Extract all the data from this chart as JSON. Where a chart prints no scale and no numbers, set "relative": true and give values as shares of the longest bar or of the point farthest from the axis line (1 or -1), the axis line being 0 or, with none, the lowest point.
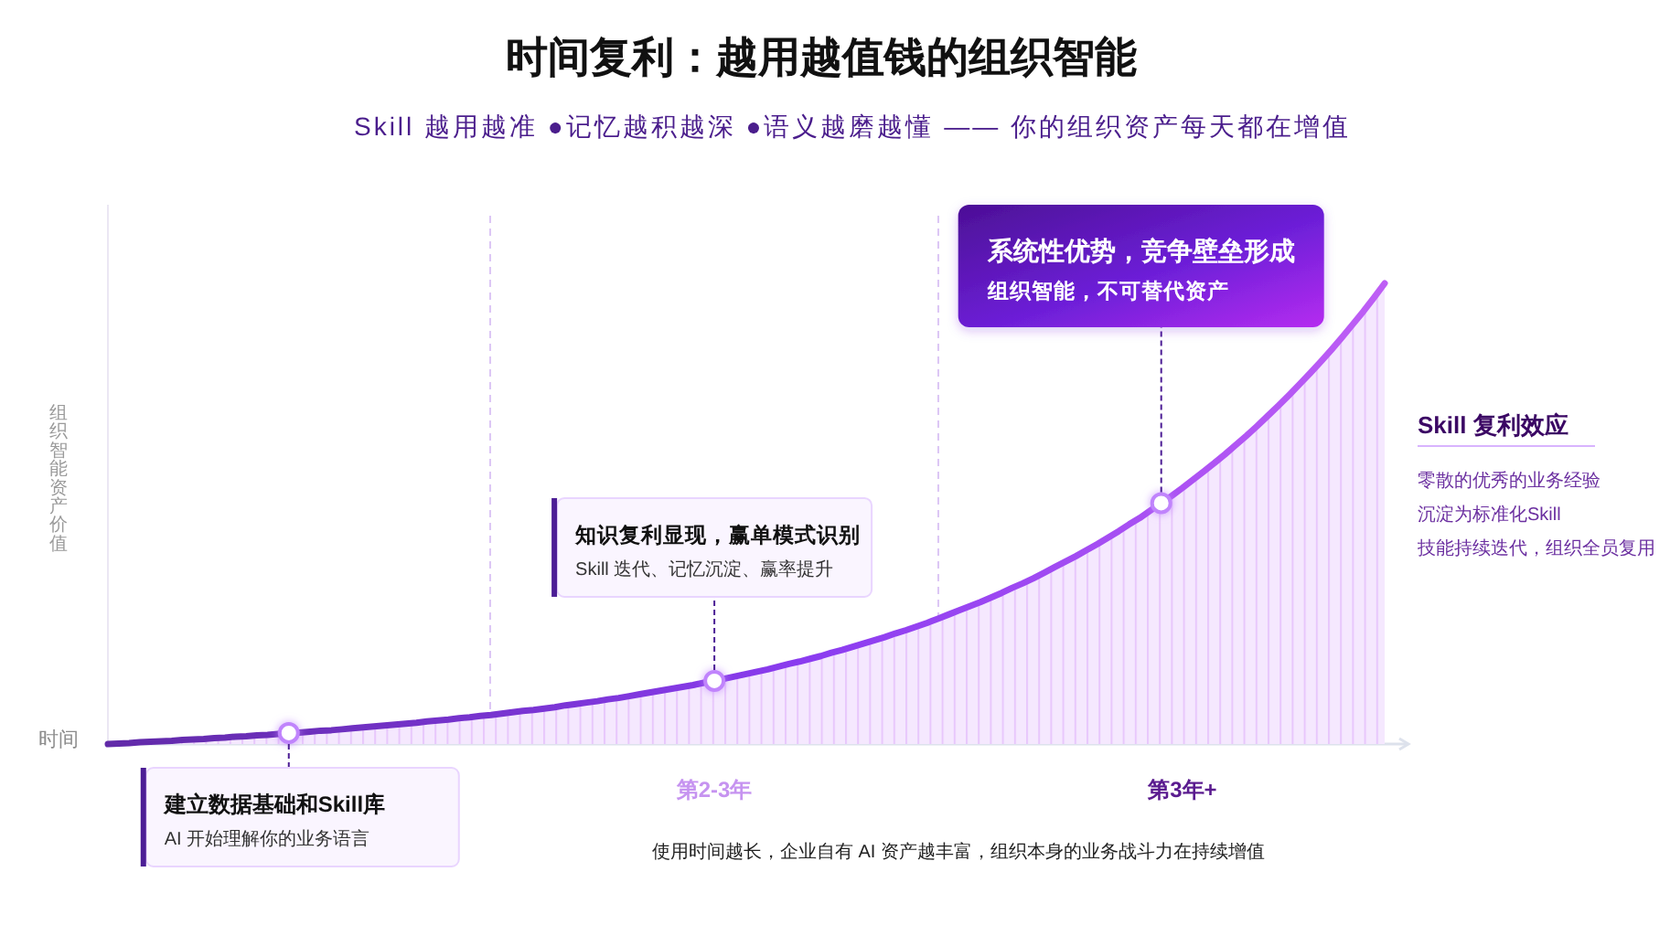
{
  "chart_data": {
    "type": "area",
    "title": "时间复利：越用越值钱的组织智能",
    "subtitle": "Skill 越用越准 ●记忆越积越深 ●语义越磨越懂 —— 你的组织资产每天都在增值",
    "xlabel": "时间",
    "ylabel": "组织智能资产价值",
    "relative": true,
    "tick_labels": "x",
    "categories": [
      null,
      null,
      null,
      null,
      null,
      null,
      null,
      null,
      null,
      null,
      null,
      null,
      null,
      null,
      null,
      null,
      null,
      null,
      null,
      null,
      null,
      null,
      null,
      null,
      null,
      null,
      null,
      null,
      null,
      null,
      null,
      null,
      null,
      null,
      null,
      null,
      null,
      null,
      null,
      null,
      null,
      null,
      null,
      null,
      null,
      null,
      null,
      null,
      null,
      null,
      null,
      null,
      null,
      null,
      null,
      null,
      null,
      "第2-3年",
      null,
      null,
      null,
      null,
      null,
      null,
      null,
      null,
      null,
      null,
      null,
      null,
      null,
      null,
      null,
      null,
      null,
      null,
      null,
      null,
      null,
      null,
      null,
      null,
      null,
      null,
      null,
      null,
      null,
      null,
      null,
      null,
      null,
      null,
      null,
      null,
      null,
      null,
      null,
      null,
      null,
      null,
      null,
      "第3年+",
      null,
      null,
      null,
      null,
      null,
      null,
      null,
      null,
      null,
      null,
      null,
      null,
      null,
      null,
      null,
      null,
      null,
      null,
      null
    ],
    "series": [
      {
        "color": "#8b3cf0",
        "values": [
          0,
          0.001,
          0.002,
          0.004,
          0.005,
          0.006,
          0.007,
          0.009,
          0.01,
          0.011,
          0.013,
          0.014,
          0.016,
          0.017,
          0.019,
          0.02,
          0.022,
          0.024,
          0.025,
          0.027,
          0.029,
          0.03,
          0.032,
          0.034,
          0.036,
          0.038,
          0.04,
          0.042,
          0.044,
          0.046,
          0.049,
          0.051,
          0.053,
          0.056,
          0.058,
          0.061,
          0.063,
          0.066,
          0.069,
          0.072,
          0.074,
          0.077,
          0.08,
          0.084,
          0.087,
          0.09,
          0.093,
          0.097,
          0.1,
          0.104,
          0.108,
          0.112,
          0.116,
          0.12,
          0.124,
          0.128,
          0.133,
          0.137,
          0.142,
          0.147,
          0.152,
          0.157,
          0.162,
          0.168,
          0.174,
          0.179,
          0.185,
          0.191,
          0.198,
          0.204,
          0.211,
          0.218,
          0.225,
          0.232,
          0.24,
          0.247,
          0.255,
          0.263,
          0.272,
          0.281,
          0.29,
          0.299,
          0.308,
          0.318,
          0.328,
          0.339,
          0.349,
          0.36,
          0.372,
          0.384,
          0.396,
          0.408,
          0.421,
          0.434,
          0.448,
          0.462,
          0.477,
          0.491,
          0.507,
          0.523,
          0.539,
          0.556,
          0.574,
          0.592,
          0.61,
          0.629,
          0.649,
          0.669,
          0.69,
          0.712,
          0.734,
          0.757,
          0.781,
          0.805,
          0.83,
          0.856,
          0.883,
          0.911,
          0.939,
          0.969,
          1
        ]
      },
      {
        "type": "scatter",
        "color": "#c084fc",
        "values": [
          null,
          null,
          null,
          null,
          null,
          null,
          null,
          null,
          null,
          null,
          null,
          null,
          null,
          null,
          null,
          null,
          null,
          0.024,
          null,
          null,
          null,
          null,
          null,
          null,
          null,
          null,
          null,
          null,
          null,
          null,
          null,
          null,
          null,
          null,
          null,
          null,
          null,
          null,
          null,
          null,
          null,
          null,
          null,
          null,
          null,
          null,
          null,
          null,
          null,
          null,
          null,
          null,
          null,
          null,
          null,
          null,
          null,
          0.137,
          null,
          null,
          null,
          null,
          null,
          null,
          null,
          null,
          null,
          null,
          null,
          null,
          null,
          null,
          null,
          null,
          null,
          null,
          null,
          null,
          null,
          null,
          null,
          null,
          null,
          null,
          null,
          null,
          null,
          null,
          null,
          null,
          null,
          null,
          null,
          null,
          null,
          null,
          null,
          null,
          null,
          0.523,
          null,
          null,
          null,
          null,
          null,
          null,
          null,
          null,
          null,
          null,
          null,
          null,
          null,
          null,
          null,
          null,
          null,
          null,
          null,
          null,
          null
        ]
      }
    ],
    "annotations": [
      "建立数据基础和Skill库",
      "AI 开始理解你的业务语言",
      "知识复利显现，赢单模式识别",
      "Skill 迭代、记忆沉淀、赢率提升",
      "系统性优势，竞争壁垒形成",
      "组织智能，不可替代资产",
      "Skill 复利效应",
      "零散的优秀的业务经验",
      "沉淀为标准化Skill",
      "技能持续迭代，组织全员复用",
      "使用时间越长，企业自有 AI 资产越丰富，组织本身的业务战斗力在持续增值"
    ]
  }
}
